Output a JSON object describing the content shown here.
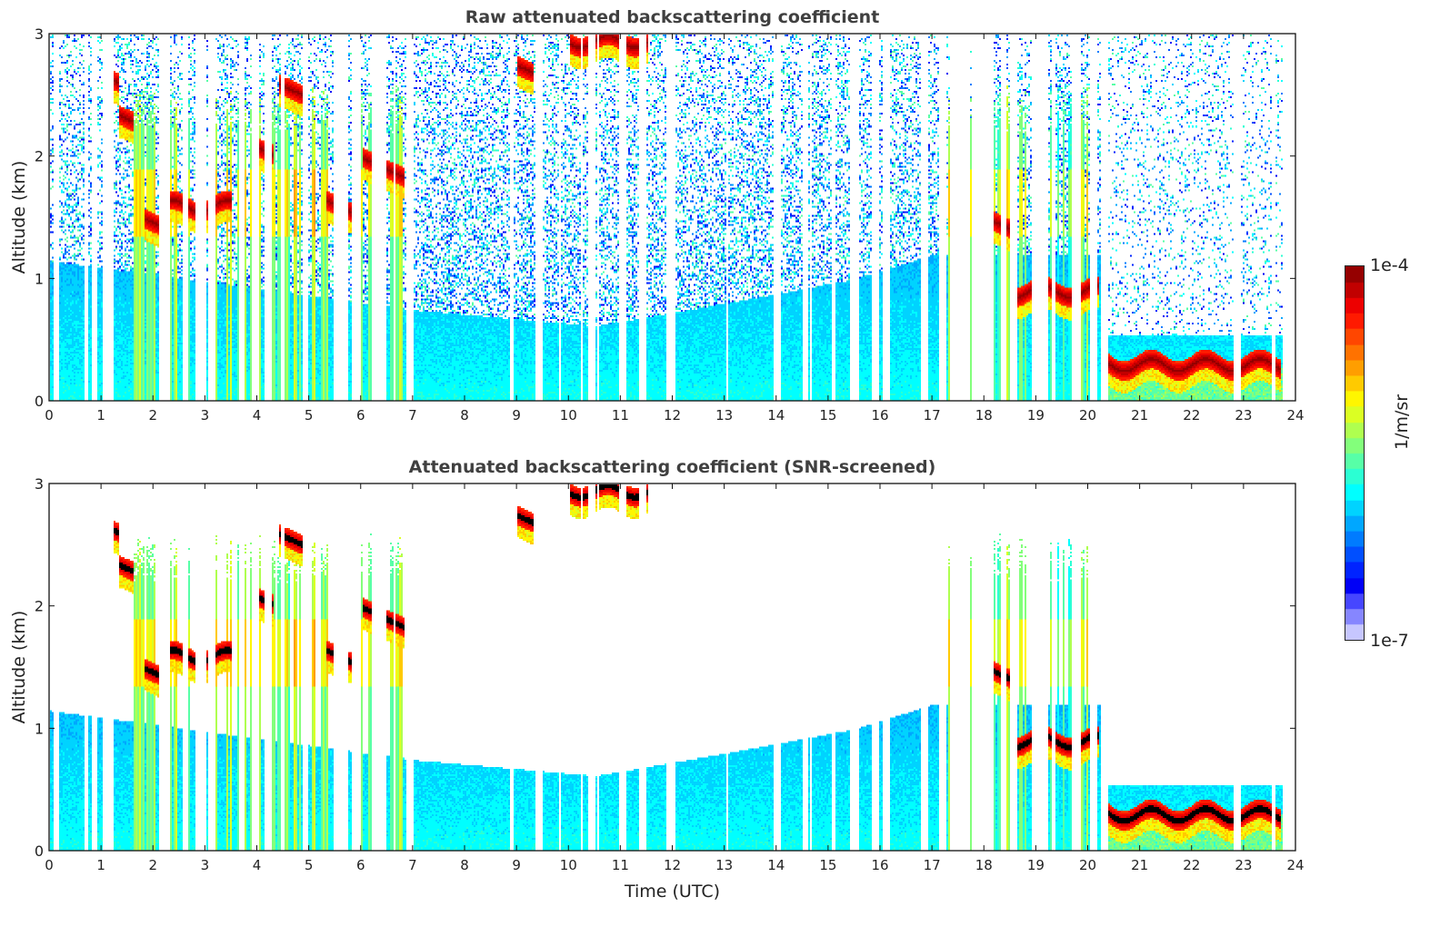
{
  "chart_data": [
    {
      "type": "heatmap",
      "title": "Raw attenuated backscattering coefficient",
      "xlabel": "",
      "ylabel": "Altitude (km)",
      "xlim": [
        0,
        24
      ],
      "ylim": [
        0,
        3
      ],
      "xticks": [
        "0",
        "1",
        "2",
        "3",
        "4",
        "5",
        "6",
        "7",
        "8",
        "9",
        "10",
        "11",
        "12",
        "13",
        "14",
        "15",
        "16",
        "17",
        "18",
        "19",
        "20",
        "21",
        "22",
        "23",
        "24"
      ],
      "yticks": [
        "0",
        "1",
        "2",
        "3"
      ],
      "screened": false,
      "features": {
        "cloud_layers": [
          {
            "t0": 1.1,
            "t1": 1.3,
            "z": 2.65,
            "label": "cloud"
          },
          {
            "t0": 1.3,
            "t1": 1.6,
            "z": 2.35,
            "label": "cloud"
          },
          {
            "t0": 1.8,
            "t1": 2.2,
            "z": 1.5,
            "label": "cloud"
          },
          {
            "t0": 2.2,
            "t1": 3.5,
            "z": 1.6,
            "label": "cloud"
          },
          {
            "t0": 3.9,
            "t1": 4.3,
            "z": 2.1,
            "label": "cloud"
          },
          {
            "t0": 4.4,
            "t1": 4.9,
            "z": 2.6,
            "label": "cloud"
          },
          {
            "t0": 5.3,
            "t1": 5.9,
            "z": 1.65,
            "label": "cloud"
          },
          {
            "t0": 6.0,
            "t1": 6.8,
            "z": 2.0,
            "label": "cloud"
          },
          {
            "t0": 10.0,
            "t1": 11.5,
            "z": 2.95,
            "label": "cloud"
          },
          {
            "t0": 9.0,
            "t1": 9.3,
            "z": 2.75,
            "label": "cloud"
          },
          {
            "t0": 17.8,
            "t1": 18.5,
            "z": 1.55,
            "label": "cloud"
          },
          {
            "t0": 18.5,
            "t1": 20.2,
            "z": 0.9,
            "label": "cloud"
          },
          {
            "t0": 20.3,
            "t1": 23.7,
            "z": 0.3,
            "label": "fog/low cloud"
          }
        ],
        "boundary_layer_top_km": [
          {
            "t": 0,
            "z": 1.15
          },
          {
            "t": 7,
            "z": 0.75
          },
          {
            "t": 10.5,
            "z": 0.62
          },
          {
            "t": 13,
            "z": 0.8
          },
          {
            "t": 15.5,
            "z": 1.0
          },
          {
            "t": 17,
            "z": 1.2
          }
        ]
      }
    },
    {
      "type": "heatmap",
      "title": "Attenuated backscattering coefficient (SNR-screened)",
      "xlabel": "Time (UTC)",
      "ylabel": "Altitude (km)",
      "xlim": [
        0,
        24
      ],
      "ylim": [
        0,
        3
      ],
      "xticks": [
        "0",
        "1",
        "2",
        "3",
        "4",
        "5",
        "6",
        "7",
        "8",
        "9",
        "10",
        "11",
        "12",
        "13",
        "14",
        "15",
        "16",
        "17",
        "18",
        "19",
        "20",
        "21",
        "22",
        "23",
        "24"
      ],
      "yticks": [
        "0",
        "1",
        "2",
        "3"
      ],
      "screened": true
    }
  ],
  "colorbar": {
    "label": "1/m/sr",
    "min_label": "1e-7",
    "max_label": "1e-4",
    "min": 1e-07,
    "max": 0.0001,
    "scale": "log",
    "colormap": "jet"
  }
}
